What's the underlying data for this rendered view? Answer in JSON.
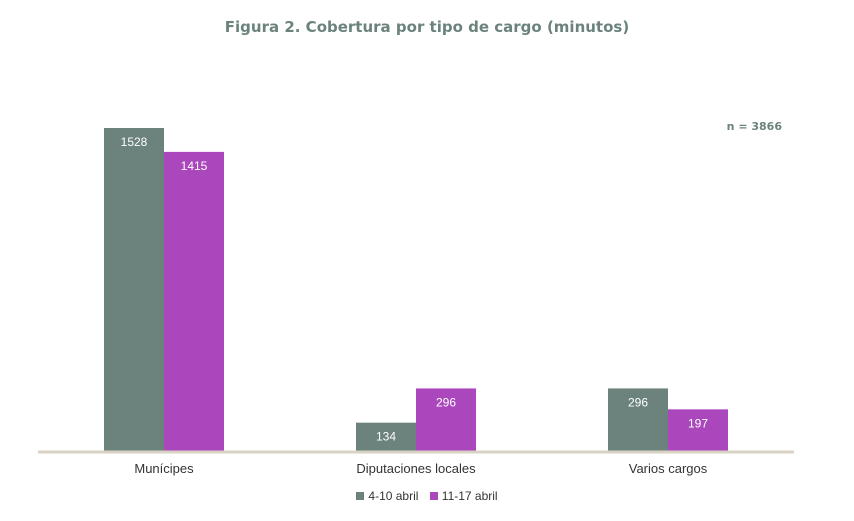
{
  "chart_data": {
    "type": "bar",
    "title": "Figura 2. Cobertura por tipo de cargo (minutos)",
    "annotation": "n = 3866",
    "categories": [
      "Munícipes",
      "Diputaciones locales",
      "Varios cargos"
    ],
    "series": [
      {
        "name": "4-10 abril",
        "values": [
          1528,
          134,
          296
        ],
        "color": "#6b827d"
      },
      {
        "name": "11-17 abril",
        "values": [
          1415,
          296,
          197
        ],
        "color": "#ab47bc"
      }
    ],
    "ylim": [
      0,
      1528
    ],
    "grid": false,
    "legend_position": "bottom-center",
    "colors": {
      "title": "#6b827d",
      "axis": "#d8d2c4",
      "label_text": "#ffffff",
      "category_text": "#333333"
    }
  }
}
